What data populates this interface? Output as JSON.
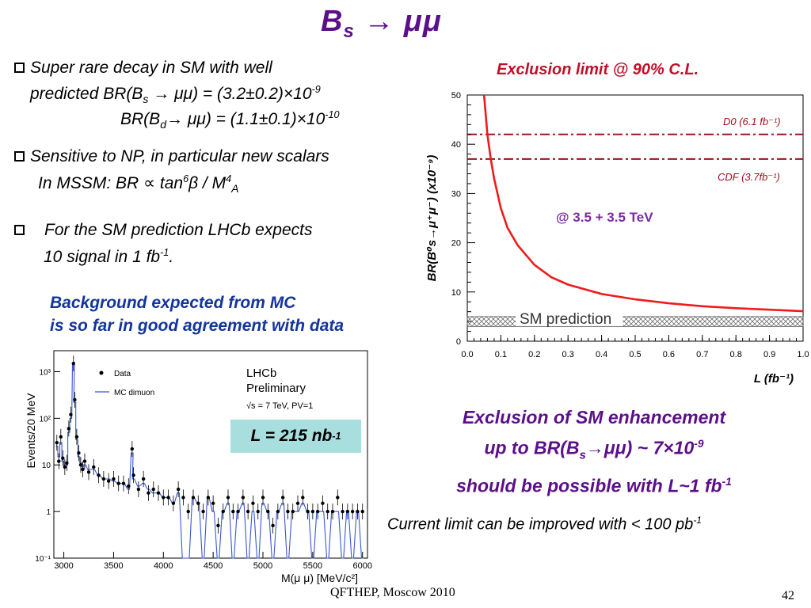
{
  "slide": {
    "title_main": "B",
    "title_sub": "s",
    "title_rest": " → μμ",
    "bullets": {
      "b1_line1": "Super rare decay in SM with well",
      "b1_line2_pre": "predicted BR(B",
      "b1_line2_sub": "s",
      "b1_line2_post": " → μμ) = (3.2±0.2)×10",
      "b1_line2_exp": "-9",
      "b1_line3_pre": "BR(B",
      "b1_line3_sub": "d",
      "b1_line3_post": "→ μμ) = (1.1±0.1)×10",
      "b1_line3_exp": "-10",
      "b2_line1": "Sensitive to NP, in particular new scalars",
      "b2_line2_pre": "In MSSM: BR ∝ tan",
      "b2_line2_exp1": "6",
      "b2_line2_mid": "β / M",
      "b2_line2_exp2": "4",
      "b2_line2_sub": "A",
      "b3_line1": "For the SM prediction LHCb expects",
      "b3_line2_pre": "10 signal in 1 fb",
      "b3_line2_exp": "-1",
      "b3_line2_post": "."
    },
    "background_line1": "Background expected from MC",
    "background_line2": "is so far in good agreement with data",
    "exclusion_heading": "Exclusion limit @ 90% C.L.",
    "lumi_box_pre": "L = 215 nb",
    "lumi_box_exp": "-1",
    "conclusion_line1": "Exclusion of SM enhancement",
    "conclusion_line2_pre": "up to BR(B",
    "conclusion_line2_sub": "s",
    "conclusion_line2_post": "→μμ) ~ 7×10",
    "conclusion_line2_exp": "-9",
    "conclusion_line3_pre": "should be possible with L~1 fb",
    "conclusion_line3_exp": "-1",
    "current_limit_pre": "Current limit can be improved with < 100 pb",
    "current_limit_exp": "-1",
    "footer_left": "QFTHEP, Moscow 2010",
    "footer_page": "42",
    "colors": {
      "title": "#5c0f8b",
      "blue_text": "#13359c",
      "red_text": "#c0102a",
      "curve": "#ee1c1c",
      "dashdot": "#a0101c",
      "mc": "#3b55d6",
      "lumi_box": "#a8dede"
    }
  },
  "chart_data": [
    {
      "type": "line",
      "ylabel": "BR(B⁰s→μ⁺μ⁻) (x10⁻⁹)",
      "xlabel": "L (fb⁻¹)",
      "xlim": [
        0,
        1.0
      ],
      "ylim": [
        0,
        50
      ],
      "x_ticks": [
        "0.0",
        "0.1",
        "0.2",
        "0.3",
        "0.4",
        "0.5",
        "0.6",
        "0.7",
        "0.8",
        "0.9",
        "1.0"
      ],
      "y_ticks": [
        "0",
        "10",
        "20",
        "30",
        "40",
        "50"
      ],
      "series": [
        {
          "x": [
            0.05,
            0.06,
            0.07,
            0.08,
            0.1,
            0.12,
            0.15,
            0.2,
            0.25,
            0.3,
            0.4,
            0.5,
            0.6,
            0.7,
            0.8,
            0.9,
            1.0
          ],
          "values": [
            50.0,
            42.0,
            37.0,
            33.0,
            27.0,
            23.0,
            19.5,
            15.5,
            13.0,
            11.5,
            9.6,
            8.5,
            7.7,
            7.1,
            6.7,
            6.4,
            6.1
          ]
        }
      ],
      "hlines": [
        {
          "label": "D0 (6.1 fb⁻¹)",
          "y": 42
        },
        {
          "label": "CDF (3.7fb⁻¹)",
          "y": 37
        }
      ],
      "band": {
        "label": "SM prediction",
        "y0": 3,
        "y1": 5
      },
      "annotation": "@ 3.5 + 3.5 TeV",
      "grid": false
    },
    {
      "type": "scatter",
      "title": "LHCb Preliminary",
      "subtitle": "√s = 7 TeV, PV=1",
      "xlabel": "M(μ μ) [MeV/c²]",
      "ylabel": "Events/20 MeV",
      "xlim": [
        2900,
        6050
      ],
      "log_y": true,
      "x_ticks": [
        "3000",
        "3500",
        "4000",
        "4500",
        "5000",
        "5500",
        "6000"
      ],
      "y_ticks": [
        "10⁻¹",
        "1",
        "10",
        "10²",
        "10³"
      ],
      "legend": [
        "Data",
        "MC dimuon"
      ],
      "legend_position": "top-left",
      "series": [
        {
          "name": "Data",
          "x": [
            2930,
            2950,
            2970,
            2990,
            3010,
            3030,
            3050,
            3070,
            3097,
            3110,
            3130,
            3150,
            3170,
            3190,
            3210,
            3250,
            3300,
            3350,
            3400,
            3450,
            3500,
            3550,
            3600,
            3650,
            3686,
            3700,
            3750,
            3800,
            3850,
            3900,
            3950,
            4000,
            4050,
            4100,
            4150,
            4200,
            4250,
            4300,
            4350,
            4400,
            4450,
            4500,
            4550,
            4600,
            4650,
            4700,
            4750,
            4800,
            4850,
            4900,
            4950,
            5000,
            5050,
            5100,
            5150,
            5200,
            5250,
            5300,
            5350,
            5400,
            5450,
            5500,
            5550,
            5600,
            5650,
            5700,
            5750,
            5800,
            5850,
            5900,
            5950,
            6000
          ],
          "values": [
            30,
            12,
            40,
            14,
            9,
            11,
            60,
            120,
            1500,
            250,
            40,
            18,
            10,
            8,
            12,
            7,
            9,
            6,
            5,
            4.5,
            5,
            4,
            4,
            3.5,
            22,
            6,
            3,
            5,
            2.5,
            3,
            2.5,
            2,
            2,
            1.5,
            3,
            2,
            1,
            2,
            1.5,
            1,
            2,
            1.5,
            0.5,
            1,
            2,
            1,
            1,
            2,
            1,
            1.5,
            1,
            2,
            1,
            0.5,
            1,
            2,
            1,
            1,
            1.5,
            2,
            1,
            1,
            1,
            1.5,
            1,
            1,
            2,
            1,
            1,
            1,
            1,
            1
          ]
        },
        {
          "name": "MC dimuon",
          "x": [
            2930,
            2950,
            2970,
            2990,
            3010,
            3030,
            3050,
            3070,
            3097,
            3110,
            3130,
            3150,
            3170,
            3190,
            3210,
            3250,
            3300,
            3350,
            3400,
            3450,
            3500,
            3550,
            3600,
            3650,
            3686,
            3700,
            3750,
            3800,
            3850,
            3900,
            3950,
            4000,
            4050,
            4100,
            4150,
            4200,
            4250,
            4300,
            4350,
            4400,
            4450,
            4500,
            4550,
            4600,
            4650,
            4700,
            4750,
            4800,
            4850,
            4900,
            4950,
            5000,
            5050,
            5100,
            5150,
            5200,
            5250,
            5300,
            5350,
            5400,
            5450,
            5500,
            5550,
            5600,
            5650,
            5700,
            5750,
            5800,
            5850,
            5900,
            5950,
            6000
          ],
          "values": [
            25,
            15,
            30,
            12,
            10,
            10,
            50,
            100,
            1400,
            220,
            35,
            15,
            11,
            9,
            10,
            8,
            8,
            6,
            5,
            5,
            4.5,
            4,
            4,
            3,
            18,
            5,
            3.5,
            4,
            3,
            2.5,
            2.5,
            2,
            2,
            1.5,
            2.5,
            0.1,
            0.1,
            2,
            1.5,
            0.1,
            2,
            1,
            0.1,
            1,
            1.5,
            0.1,
            1,
            1.5,
            0.1,
            1,
            0.1,
            1.5,
            1,
            0.1,
            1,
            1.5,
            0.1,
            1,
            1,
            1.5,
            1,
            0.1,
            1,
            1,
            0.1,
            1,
            1,
            0.1,
            1,
            0.1,
            1,
            0.1
          ]
        }
      ]
    }
  ]
}
